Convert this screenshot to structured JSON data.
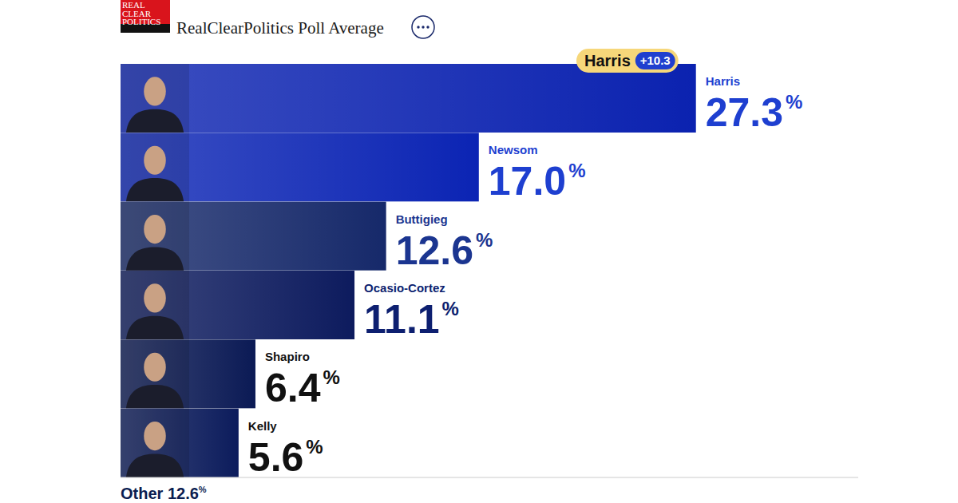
{
  "chart_data": {
    "type": "bar",
    "orientation": "horizontal",
    "title": "RealClearPolitics Poll Average",
    "logo": "REAL CLEAR POLITICS",
    "categories": [
      "Harris",
      "Newsom",
      "Buttigieg",
      "Ocasio-Cortez",
      "Shapiro",
      "Kelly"
    ],
    "values": [
      27.3,
      17.0,
      12.6,
      11.1,
      6.4,
      5.6
    ],
    "value_labels": [
      "27.3%",
      "17.0%",
      "12.6%",
      "11.1%",
      "6.4%",
      "5.6%"
    ],
    "colors": [
      "#0b22b0",
      "#0b24b4",
      "#16296a",
      "#0d1b5e",
      "#0b1a55",
      "#0c1c5c"
    ],
    "data_labels": true,
    "tick_labels": false,
    "xlim": [
      0,
      35
    ],
    "annotation": {
      "category": "Harris",
      "text": "Harris",
      "value": 10.3,
      "label": "+10.3"
    },
    "other": {
      "label": "Other",
      "value": 12.6,
      "value_label": "12.6%"
    }
  }
}
